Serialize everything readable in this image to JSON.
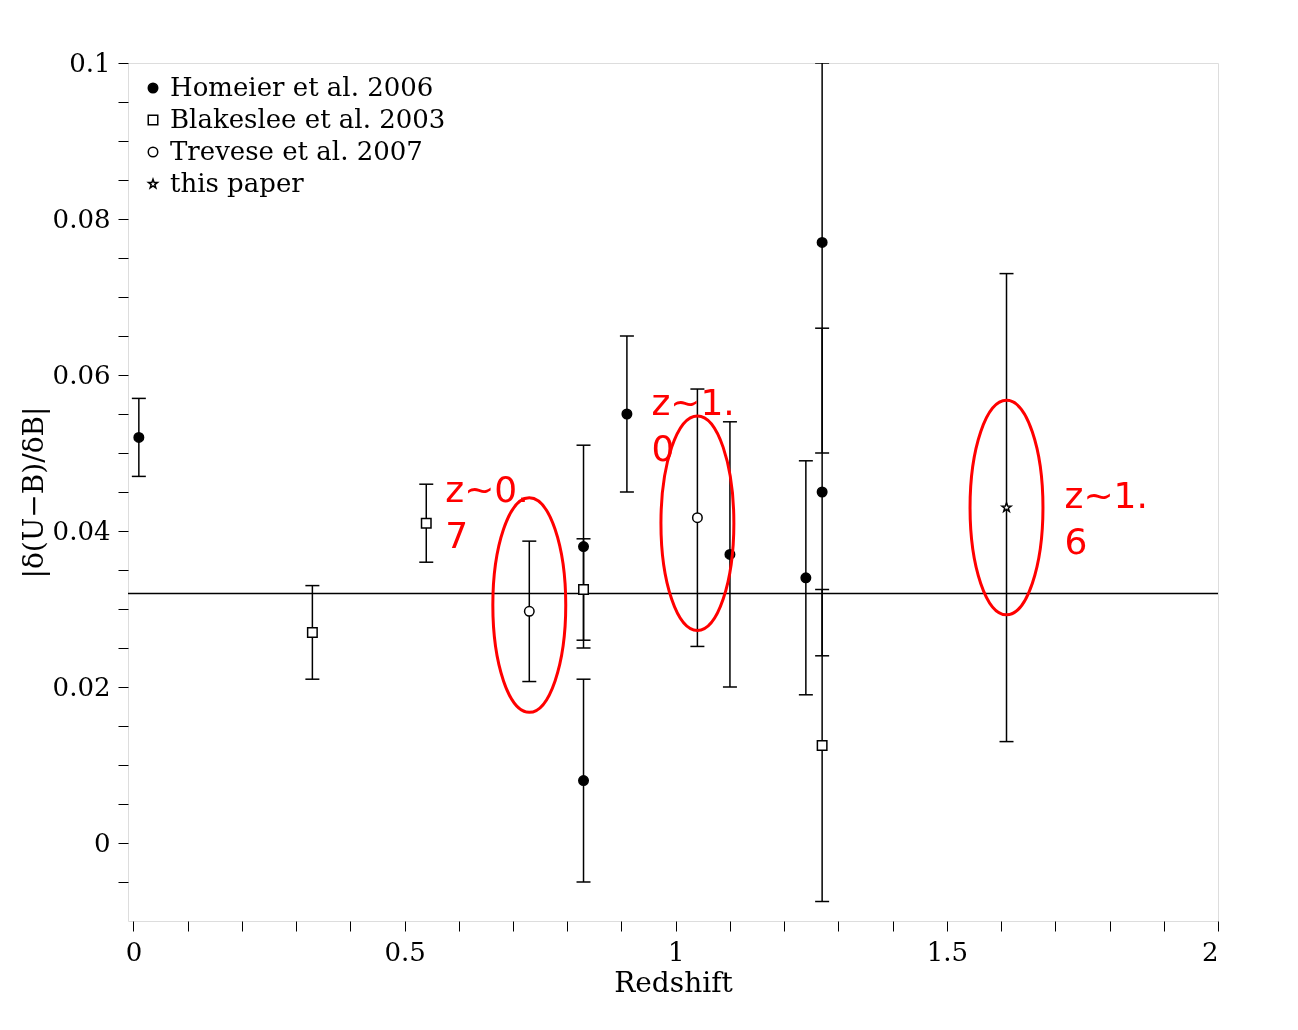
{
  "chart_data": {
    "type": "scatter",
    "xlabel": "Redshift",
    "ylabel": "|δ(U−B)/δB|",
    "xlim": [
      -0.01,
      2
    ],
    "ylim": [
      -0.01,
      0.1
    ],
    "xticks": [
      0,
      {
        "value": 0.1,
        "label": null
      },
      {
        "value": 0.2,
        "label": null
      },
      {
        "value": 0.3,
        "label": null
      },
      {
        "value": 0.4,
        "label": null
      },
      0.5,
      {
        "value": 0.6,
        "label": null
      },
      {
        "value": 0.7,
        "label": null
      },
      {
        "value": 0.8,
        "label": null
      },
      {
        "value": 0.9,
        "label": null
      },
      1,
      {
        "value": 1.1,
        "label": null
      },
      {
        "value": 1.2,
        "label": null
      },
      {
        "value": 1.3,
        "label": null
      },
      {
        "value": 1.4,
        "label": null
      },
      1.5,
      {
        "value": 1.6,
        "label": null
      },
      {
        "value": 1.7,
        "label": null
      },
      {
        "value": 1.8,
        "label": null
      },
      {
        "value": 1.9,
        "label": null
      },
      2
    ],
    "yticks": [
      {
        "value": -0.005,
        "label": null
      },
      0,
      {
        "value": 0.005,
        "label": null
      },
      {
        "value": 0.01,
        "label": null
      },
      {
        "value": 0.015,
        "label": null
      },
      0.02,
      {
        "value": 0.025,
        "label": null
      },
      {
        "value": 0.03,
        "label": null
      },
      {
        "value": 0.035,
        "label": null
      },
      0.04,
      {
        "value": 0.045,
        "label": null
      },
      {
        "value": 0.05,
        "label": null
      },
      {
        "value": 0.055,
        "label": null
      },
      0.06,
      {
        "value": 0.065,
        "label": null
      },
      {
        "value": 0.07,
        "label": null
      },
      {
        "value": 0.075,
        "label": null
      },
      0.08,
      {
        "value": 0.085,
        "label": null
      },
      {
        "value": 0.09,
        "label": null
      },
      {
        "value": 0.095,
        "label": null
      },
      0.1
    ],
    "grid": false,
    "legend": "top left",
    "series": [
      {
        "name": "Homeier et al. 2006",
        "color": "#000000",
        "marker": "circle",
        "x": [
          0.01,
          0.83,
          0.83,
          0.91,
          1.1,
          1.24,
          1.27,
          1.27
        ],
        "values": [
          0.052,
          0.038,
          0.008,
          0.055,
          0.037,
          0.034,
          0.077,
          0.045
        ],
        "errors": [
          0.005,
          [
            0.025,
            0.051
          ],
          0.013,
          0.01,
          0.017,
          0.015,
          [
            0.05,
            0.1
          ],
          0.021
        ]
      },
      {
        "name": "Blakeslee et al. 2003",
        "color": "#000000",
        "marker": "square",
        "x": [
          0.33,
          0.54,
          0.83,
          1.27
        ],
        "values": [
          0.027,
          0.041,
          0.0325,
          0.0125
        ],
        "errors": [
          0.006,
          0.005,
          0.0065,
          0.02
        ]
      },
      {
        "name": "Trevese et al. 2007",
        "color": "#000000",
        "marker": "circle",
        "x": [
          0.73,
          1.04
        ],
        "values": [
          0.0297,
          0.0417
        ],
        "errors": [
          0.009,
          0.0165
        ]
      },
      {
        "name": "this paper",
        "color": "#000000",
        "marker": "star",
        "x": [
          1.61
        ],
        "values": [
          0.043
        ],
        "errors": [
          0.03
        ]
      }
    ],
    "ref_lines": [
      {
        "axis": "y",
        "value": 0.032,
        "color": "#000000"
      }
    ],
    "annotations": [
      {
        "text": "z~0.\n7",
        "x": 0.73,
        "y": 0.0305
      },
      {
        "text": "z~1.\n0",
        "x": 1.04,
        "y": 0.041
      },
      {
        "text": "z~1.\n6",
        "x": 1.61,
        "y": 0.043
      }
    ]
  }
}
